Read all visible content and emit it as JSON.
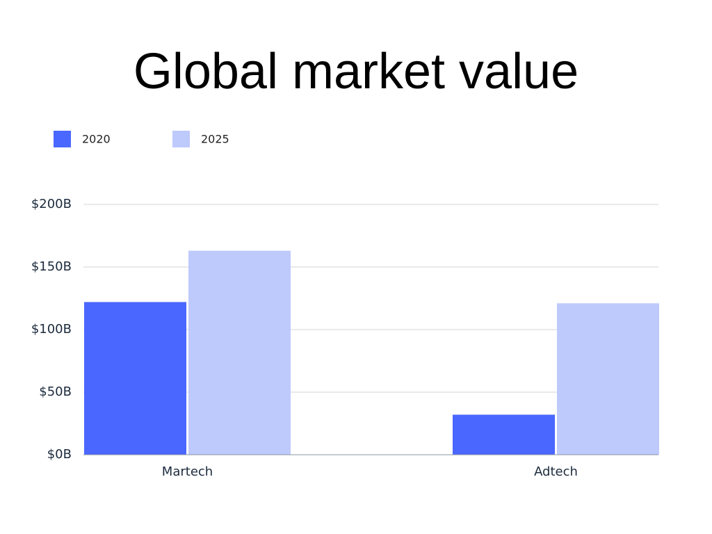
{
  "chart_data": {
    "type": "bar",
    "title": "Global market value",
    "categories": [
      "Martech",
      "Adtech"
    ],
    "series": [
      {
        "name": "2020",
        "color": "#4a67ff",
        "values": [
          122,
          32
        ]
      },
      {
        "name": "2025",
        "color": "#bec9fc",
        "values": [
          163,
          121
        ]
      }
    ],
    "ylim": [
      0,
      200
    ],
    "yticks": [
      {
        "value": 0,
        "label": "$0B"
      },
      {
        "value": 50,
        "label": "$50B"
      },
      {
        "value": 100,
        "label": "$100B"
      },
      {
        "value": 150,
        "label": "$150B"
      },
      {
        "value": 200,
        "label": "$200B"
      }
    ],
    "grid": true,
    "legend": "top-left"
  }
}
